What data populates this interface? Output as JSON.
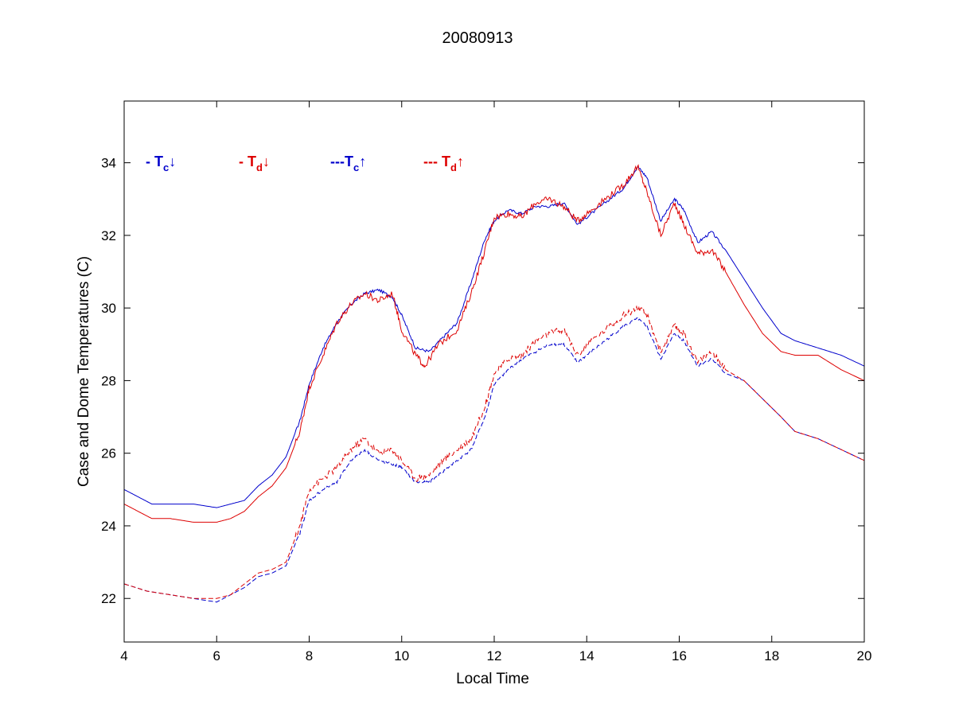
{
  "chart_data": {
    "type": "line",
    "title": "20080913",
    "xlabel": "Local Time",
    "ylabel": "Case and Dome Temperatures (C)",
    "xlim": [
      4,
      20
    ],
    "ylim": [
      20.8,
      35.7
    ],
    "xticks": [
      4,
      6,
      8,
      10,
      12,
      14,
      16,
      18,
      20
    ],
    "yticks": [
      22,
      24,
      26,
      28,
      30,
      32,
      34
    ],
    "grid": false,
    "legend": {
      "placement": "top-left",
      "entries": [
        {
          "prefix": "- T",
          "sub": "c",
          "arrow": "↓",
          "color": "#0000cc"
        },
        {
          "prefix": "- T",
          "sub": "d",
          "arrow": "↓",
          "color": "#dd0000"
        },
        {
          "prefix": "---T",
          "sub": "c",
          "arrow": "↑",
          "color": "#0000cc"
        },
        {
          "prefix": "--- T",
          "sub": "d",
          "arrow": "↑",
          "color": "#dd0000"
        }
      ]
    },
    "series": [
      {
        "color": "#0000cc",
        "dash": "solid",
        "x": [
          4.0,
          4.3,
          4.6,
          5.0,
          5.5,
          6.0,
          6.3,
          6.6,
          6.9,
          7.2,
          7.5,
          7.8,
          8.0,
          8.3,
          8.6,
          8.9,
          9.2,
          9.5,
          9.8,
          10.0,
          10.3,
          10.6,
          10.9,
          11.2,
          11.5,
          11.8,
          12.0,
          12.3,
          12.6,
          12.9,
          13.2,
          13.5,
          13.8,
          14.1,
          14.5,
          14.8,
          15.1,
          15.3,
          15.6,
          15.9,
          16.1,
          16.4,
          16.7,
          17.0,
          17.4,
          17.8,
          18.2,
          18.5,
          19.0,
          19.5,
          20.0
        ],
        "y": [
          25.0,
          24.8,
          24.6,
          24.6,
          24.6,
          24.5,
          24.6,
          24.7,
          25.1,
          25.4,
          25.9,
          26.9,
          27.9,
          28.9,
          29.6,
          30.1,
          30.4,
          30.5,
          30.3,
          29.8,
          28.9,
          28.8,
          29.2,
          29.6,
          30.7,
          31.9,
          32.4,
          32.7,
          32.6,
          32.8,
          32.8,
          32.9,
          32.3,
          32.6,
          33.0,
          33.3,
          33.9,
          33.6,
          32.4,
          33.0,
          32.7,
          31.8,
          32.1,
          31.6,
          30.8,
          30.0,
          29.3,
          29.1,
          28.9,
          28.7,
          28.4
        ]
      },
      {
        "color": "#dd0000",
        "dash": "solid",
        "x": [
          4.0,
          4.3,
          4.6,
          5.0,
          5.5,
          6.0,
          6.3,
          6.6,
          6.9,
          7.2,
          7.5,
          7.8,
          8.0,
          8.3,
          8.6,
          8.9,
          9.2,
          9.5,
          9.8,
          10.0,
          10.3,
          10.5,
          10.8,
          11.2,
          11.5,
          11.8,
          12.0,
          12.3,
          12.6,
          12.9,
          13.2,
          13.5,
          13.8,
          14.1,
          14.5,
          14.8,
          15.1,
          15.3,
          15.6,
          15.9,
          16.1,
          16.4,
          16.7,
          17.0,
          17.4,
          17.8,
          18.2,
          18.5,
          19.0,
          19.5,
          20.0
        ],
        "y": [
          24.6,
          24.4,
          24.2,
          24.2,
          24.1,
          24.1,
          24.2,
          24.4,
          24.8,
          25.1,
          25.6,
          26.6,
          27.8,
          28.7,
          29.6,
          30.1,
          30.4,
          30.2,
          30.4,
          29.4,
          28.7,
          28.4,
          29.0,
          29.4,
          30.4,
          31.6,
          32.5,
          32.6,
          32.5,
          32.9,
          33.0,
          32.8,
          32.4,
          32.7,
          33.1,
          33.4,
          33.9,
          33.2,
          32.0,
          32.9,
          32.3,
          31.5,
          31.6,
          31.0,
          30.1,
          29.3,
          28.8,
          28.7,
          28.7,
          28.3,
          28.0
        ]
      },
      {
        "color": "#0000cc",
        "dash": "dashed",
        "x": [
          4.0,
          4.5,
          5.0,
          5.5,
          6.0,
          6.3,
          6.6,
          6.9,
          7.2,
          7.5,
          7.8,
          8.0,
          8.3,
          8.6,
          8.9,
          9.2,
          9.5,
          9.8,
          10.0,
          10.3,
          10.6,
          10.9,
          11.2,
          11.5,
          11.8,
          12.0,
          12.3,
          12.6,
          12.9,
          13.2,
          13.5,
          13.8,
          14.1,
          14.5,
          14.8,
          15.1,
          15.3,
          15.6,
          15.9,
          16.1,
          16.4,
          16.7,
          17.0,
          17.4,
          17.8,
          18.2,
          18.5,
          19.0,
          19.5,
          20.0
        ],
        "y": [
          22.4,
          22.2,
          22.1,
          22.0,
          21.9,
          22.1,
          22.3,
          22.6,
          22.7,
          22.9,
          23.8,
          24.7,
          25.0,
          25.2,
          25.8,
          26.1,
          25.8,
          25.7,
          25.6,
          25.2,
          25.2,
          25.5,
          25.8,
          26.1,
          27.0,
          27.9,
          28.3,
          28.6,
          28.8,
          29.0,
          29.0,
          28.5,
          28.8,
          29.2,
          29.5,
          29.7,
          29.5,
          28.6,
          29.3,
          29.1,
          28.4,
          28.6,
          28.2,
          28.0,
          27.5,
          27.0,
          26.6,
          26.4,
          26.1,
          25.8
        ]
      },
      {
        "color": "#dd0000",
        "dash": "dashed",
        "x": [
          4.0,
          4.5,
          5.0,
          5.5,
          6.0,
          6.3,
          6.6,
          6.9,
          7.2,
          7.5,
          7.8,
          8.0,
          8.3,
          8.6,
          8.9,
          9.2,
          9.5,
          9.8,
          10.0,
          10.3,
          10.6,
          10.9,
          11.2,
          11.5,
          11.8,
          12.0,
          12.3,
          12.6,
          12.9,
          13.2,
          13.5,
          13.8,
          14.1,
          14.5,
          14.8,
          15.1,
          15.3,
          15.6,
          15.9,
          16.1,
          16.4,
          16.7,
          17.0,
          17.4,
          17.8,
          18.2,
          18.5,
          19.0,
          19.5,
          20.0
        ],
        "y": [
          22.4,
          22.2,
          22.1,
          22.0,
          22.0,
          22.1,
          22.4,
          22.7,
          22.8,
          23.0,
          24.0,
          25.0,
          25.3,
          25.6,
          26.1,
          26.4,
          26.0,
          26.1,
          25.8,
          25.3,
          25.4,
          25.8,
          26.1,
          26.4,
          27.3,
          28.2,
          28.6,
          28.7,
          29.1,
          29.3,
          29.4,
          28.7,
          29.1,
          29.5,
          29.8,
          30.0,
          29.8,
          28.8,
          29.5,
          29.3,
          28.5,
          28.8,
          28.3,
          28.0,
          27.5,
          27.0,
          26.6,
          26.4,
          26.1,
          25.8
        ]
      }
    ]
  }
}
